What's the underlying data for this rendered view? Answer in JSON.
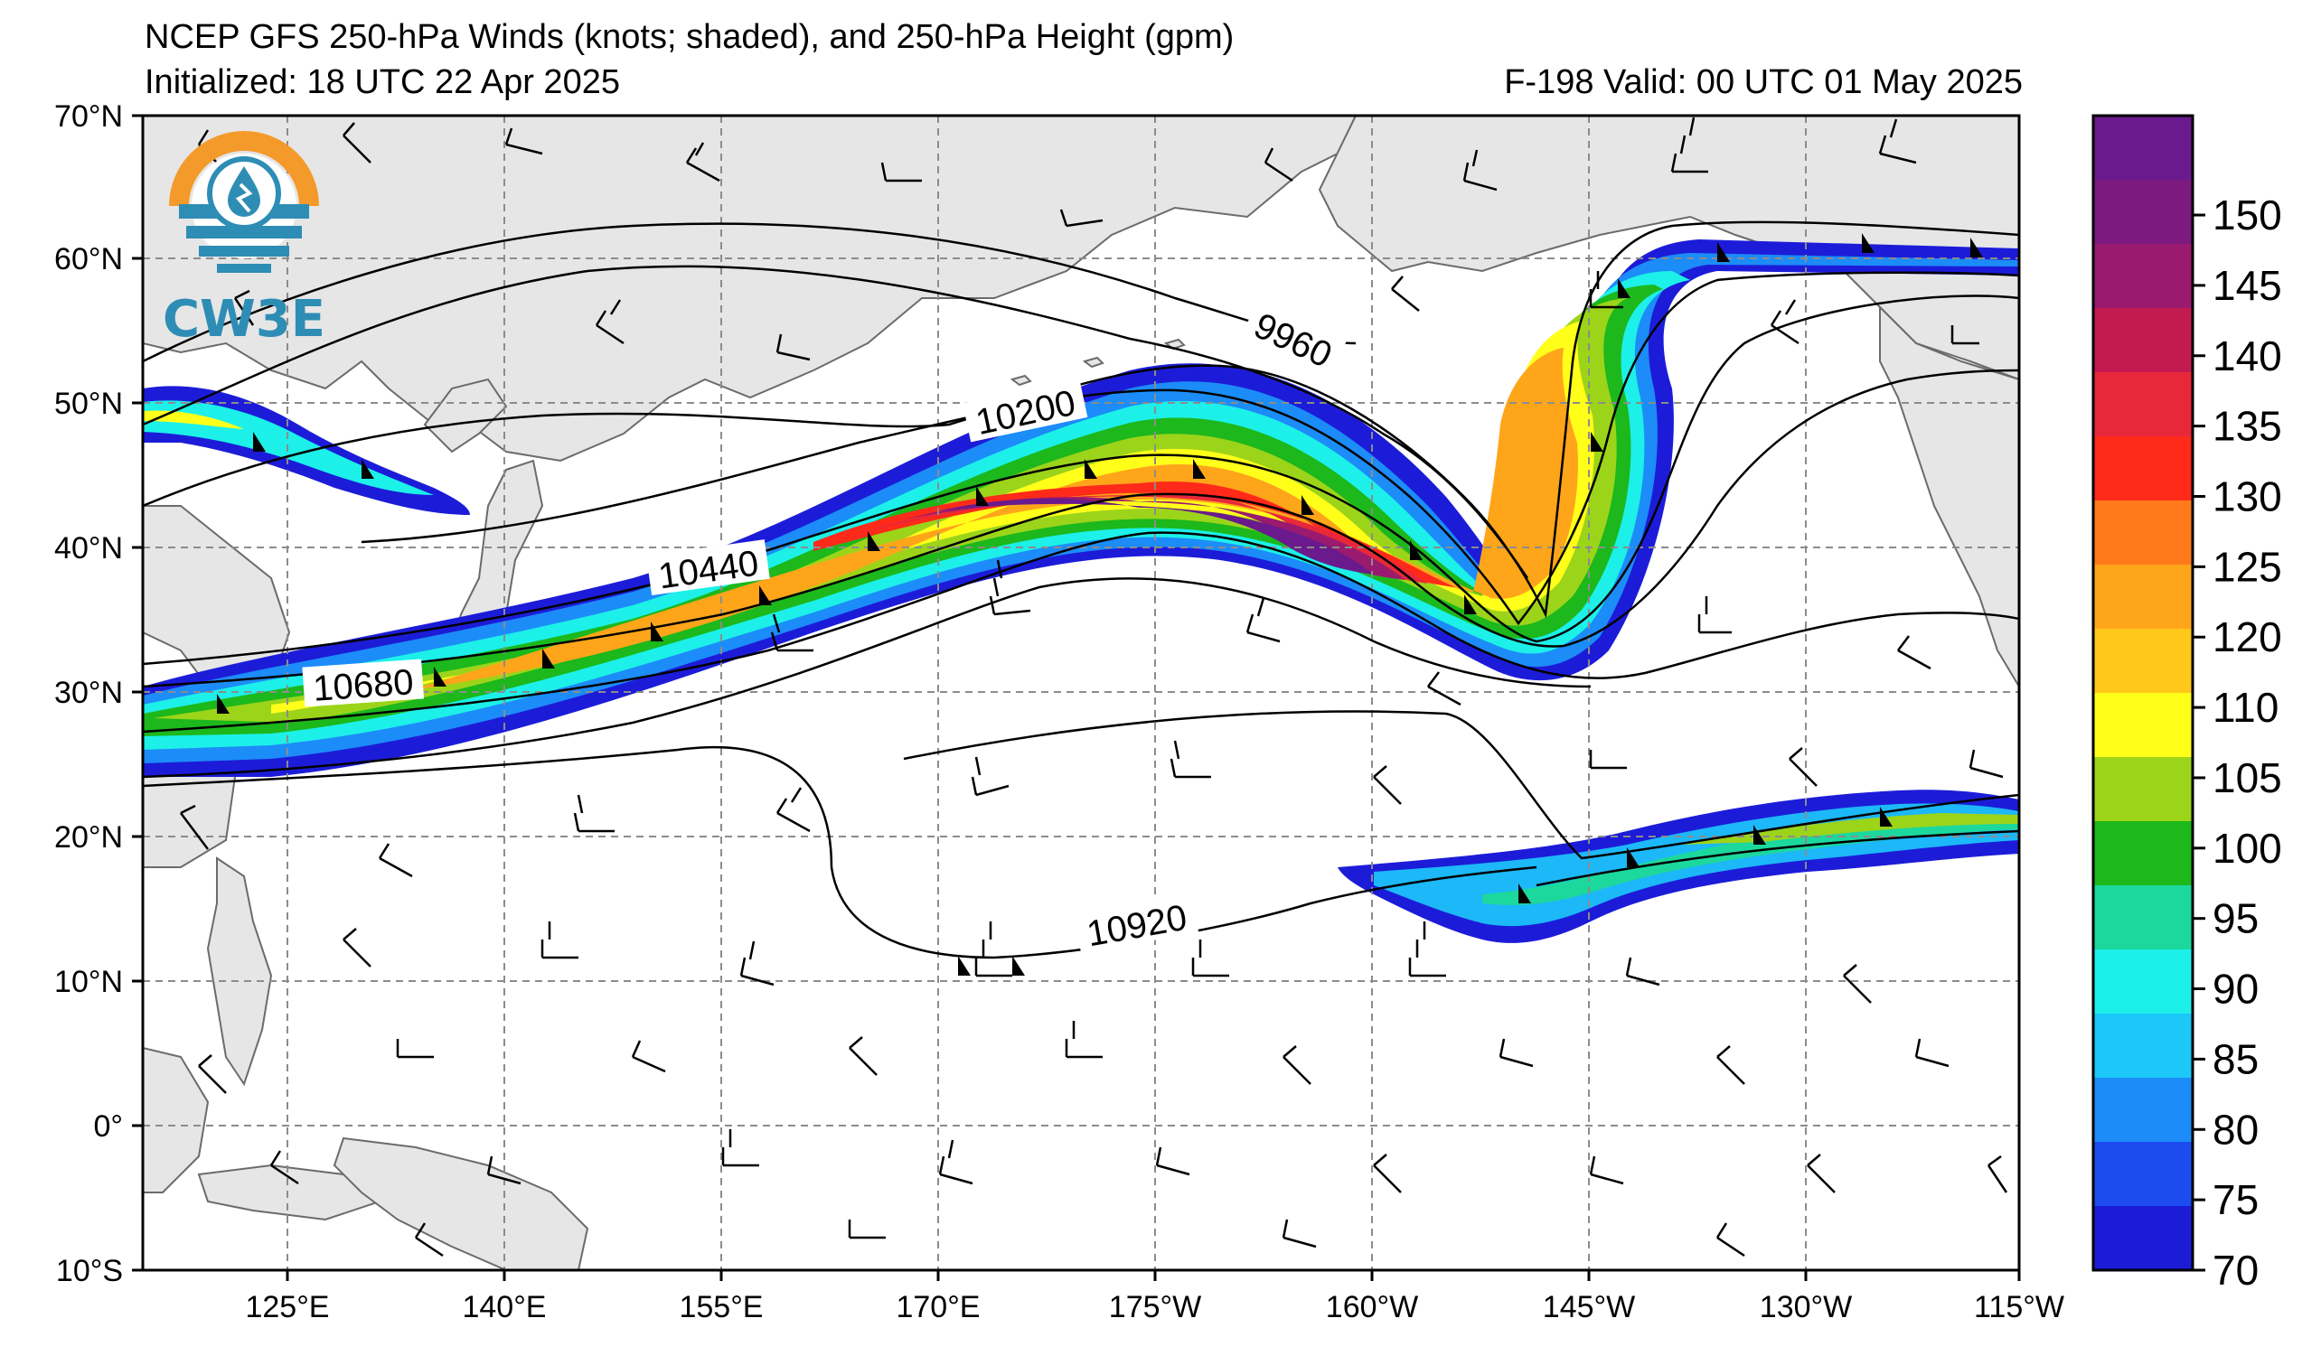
{
  "header": {
    "title": "NCEP GFS 250-hPa Winds (knots; shaded), and 250-hPa Height (gpm)",
    "init": "Initialized: 18 UTC 22 Apr 2025",
    "valid": "F-198  Valid: 00 UTC 01 May 2025"
  },
  "logo": {
    "text": "CW3E",
    "colors": {
      "orange": "#F39A2B",
      "blue": "#2E8DB4"
    }
  },
  "axes": {
    "lat_labels": [
      "70°N",
      "60°N",
      "50°N",
      "40°N",
      "30°N",
      "20°N",
      "10°N",
      "0°",
      "10°S"
    ],
    "lon_labels": [
      "125°E",
      "140°E",
      "155°E",
      "170°E",
      "175°W",
      "160°W",
      "145°W",
      "130°W",
      "115°W"
    ]
  },
  "contour_labels": [
    "9960",
    "10200",
    "10440",
    "10680",
    "10920"
  ],
  "colorbar": {
    "ticks": [
      "150",
      "145",
      "140",
      "135",
      "130",
      "125",
      "120",
      "110",
      "105",
      "100",
      "95",
      "90",
      "85",
      "80",
      "75",
      "70"
    ],
    "colors": [
      "#6A1A8C",
      "#7D1A80",
      "#9A1A70",
      "#C41A52",
      "#E8283A",
      "#FF2A1A",
      "#FF7A1A",
      "#FFA51A",
      "#FFC81A",
      "#FFFF1A",
      "#9CD41A",
      "#1CB81C",
      "#1CD89C",
      "#1CF0E8",
      "#1CC8F8",
      "#1C8CF8",
      "#1C4CF0",
      "#1C1CD8"
    ]
  }
}
